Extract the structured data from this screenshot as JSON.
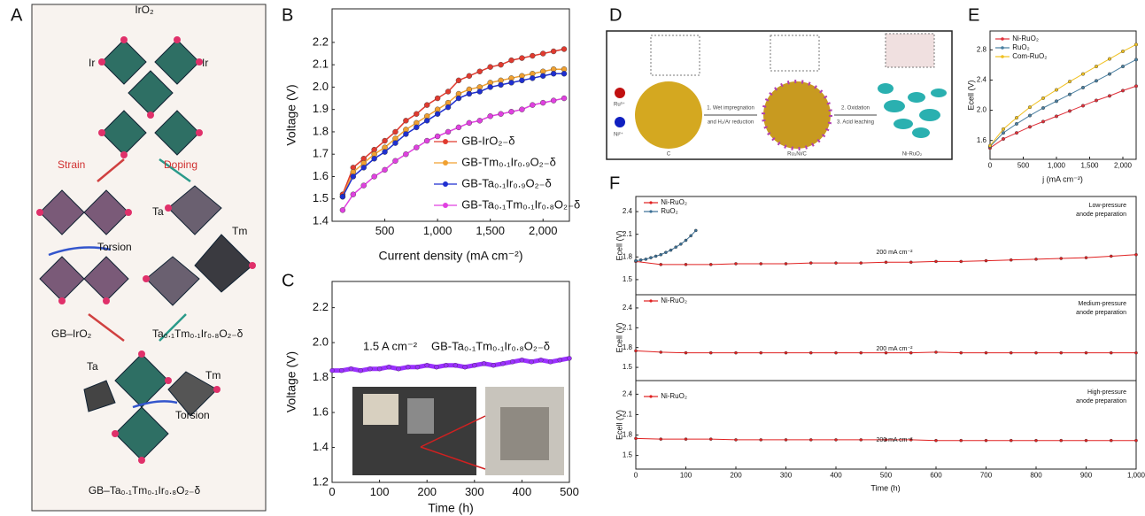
{
  "panel_labels": [
    "A",
    "B",
    "C",
    "D",
    "E",
    "F"
  ],
  "diagram_a": {
    "labels": [
      "IrO₂",
      "Ir",
      "Ir",
      "Strain",
      "Doping",
      "Torsion",
      "Ta",
      "Tm",
      "GB–IrO₂",
      "Ta₀.₁Tm₀.₁Ir₀.₈O₂₋δ",
      "Ta",
      "Tm",
      "Torsion",
      "GB–Ta₀.₁Tm₀.₁Ir₀.₈O₂₋δ"
    ]
  },
  "diagram_d": {
    "labels": [
      "Ru³⁺",
      "Ni²⁺",
      "C",
      "1. Wet impregnation",
      "and H₂/Ar reduction",
      "Ru₃Ni/C",
      "2. Oxidation",
      "3. Acid leaching",
      "Ni-RuO₂"
    ]
  },
  "chart_data": [
    {
      "type": "line",
      "markers": true,
      "xlabel": "Current density (mA cm⁻²)",
      "ylabel": "Voltage (V)",
      "legend": "lower right",
      "x": [
        100,
        200,
        300,
        400,
        500,
        600,
        700,
        800,
        900,
        1000,
        1100,
        1200,
        1300,
        1400,
        1500,
        1600,
        1700,
        1800,
        1900,
        2000,
        2100,
        2200
      ],
      "xlim": [
        0,
        2250
      ],
      "xticks": [
        500,
        {
          "value": 1000,
          "label": "1,000"
        },
        {
          "value": 1500,
          "label": "1,500"
        },
        {
          "value": 2000,
          "label": "2,000"
        }
      ],
      "ylim": [
        1.4,
        2.35
      ],
      "yticks": [
        1.4,
        1.5,
        1.6,
        1.7,
        1.8,
        1.9,
        {
          "value": 2,
          "label": "2.0"
        },
        2.1,
        2.2
      ],
      "series": [
        {
          "name": "GB-IrO₂₋δ",
          "color": "#e03a2f",
          "values": [
            1.52,
            1.64,
            1.68,
            1.72,
            1.76,
            1.8,
            1.85,
            1.88,
            1.92,
            1.95,
            1.98,
            2.03,
            2.05,
            2.07,
            2.09,
            2.1,
            2.12,
            2.13,
            2.14,
            2.15,
            2.16,
            2.17
          ]
        },
        {
          "name": "GB-Tm₀.₁Ir₀.₉O₂₋δ",
          "color": "#f0a030",
          "values": [
            1.51,
            1.62,
            1.66,
            1.7,
            1.73,
            1.77,
            1.81,
            1.84,
            1.87,
            1.9,
            1.93,
            1.97,
            1.99,
            2.0,
            2.02,
            2.03,
            2.04,
            2.05,
            2.06,
            2.07,
            2.08,
            2.08
          ]
        },
        {
          "name": "GB-Ta₀.₁Ir₀.₉O₂₋δ",
          "color": "#1f2fd0",
          "values": [
            1.51,
            1.6,
            1.64,
            1.68,
            1.71,
            1.75,
            1.79,
            1.82,
            1.85,
            1.88,
            1.91,
            1.95,
            1.97,
            1.98,
            2.0,
            2.01,
            2.02,
            2.03,
            2.04,
            2.05,
            2.06,
            2.06
          ]
        },
        {
          "name": "GB-Ta₀.₁Tm₀.₁Ir₀.₈O₂₋δ",
          "color": "#e040e0",
          "values": [
            1.45,
            1.52,
            1.56,
            1.6,
            1.63,
            1.67,
            1.7,
            1.73,
            1.76,
            1.78,
            1.8,
            1.82,
            1.84,
            1.85,
            1.87,
            1.88,
            1.89,
            1.9,
            1.92,
            1.93,
            1.94,
            1.95
          ]
        }
      ]
    },
    {
      "type": "line",
      "markers": true,
      "xlabel": "Time (h)",
      "ylabel": "Voltage (V)",
      "annotations": [
        "1.5 A cm⁻²",
        "GB-Ta₀.₁Tm₀.₁Ir₀.₈O₂₋δ"
      ],
      "x": [
        0,
        20,
        40,
        60,
        80,
        100,
        120,
        140,
        160,
        180,
        200,
        220,
        240,
        260,
        280,
        300,
        320,
        340,
        360,
        380,
        400,
        420,
        440,
        460,
        480,
        500
      ],
      "xlim": [
        0,
        500
      ],
      "xticks": [
        0,
        100,
        200,
        300,
        400,
        500
      ],
      "ylim": [
        1.2,
        2.35
      ],
      "yticks": [
        1.2,
        1.4,
        1.6,
        1.8,
        {
          "value": 2,
          "label": "2.0"
        },
        2.2
      ],
      "series": [
        {
          "color": "#9b30ff",
          "values": [
            1.84,
            1.84,
            1.85,
            1.84,
            1.85,
            1.85,
            1.86,
            1.85,
            1.86,
            1.86,
            1.87,
            1.86,
            1.87,
            1.87,
            1.86,
            1.87,
            1.88,
            1.87,
            1.88,
            1.89,
            1.9,
            1.89,
            1.9,
            1.89,
            1.9,
            1.91
          ]
        }
      ]
    },
    {
      "type": "line",
      "markers": true,
      "xlabel": "j (mA cm⁻²)",
      "ylabel": "Ecell (V)",
      "legend": "upper left",
      "x": [
        0,
        200,
        400,
        600,
        800,
        1000,
        1200,
        1400,
        1600,
        1800,
        2000,
        2200
      ],
      "xlim": [
        0,
        2200
      ],
      "xticks": [
        0,
        500,
        {
          "value": 1000,
          "label": "1,000"
        },
        {
          "value": 1500,
          "label": "1,500"
        },
        {
          "value": 2000,
          "label": "2,000"
        }
      ],
      "ylim": [
        1.35,
        3.05
      ],
      "yticks": [
        1.6,
        {
          "value": 2,
          "label": "2.0"
        },
        2.4,
        2.8
      ],
      "series": [
        {
          "name": "Ni-RuO₂",
          "color": "#e0303a",
          "values": [
            1.5,
            1.62,
            1.7,
            1.78,
            1.85,
            1.92,
            1.99,
            2.06,
            2.13,
            2.19,
            2.26,
            2.32
          ]
        },
        {
          "name": "RuO₂",
          "color": "#4a7fa0",
          "values": [
            1.52,
            1.7,
            1.82,
            1.93,
            2.03,
            2.12,
            2.21,
            2.3,
            2.39,
            2.48,
            2.58,
            2.67
          ]
        },
        {
          "name": "Com-RuO₂",
          "color": "#f0c020",
          "values": [
            1.53,
            1.75,
            1.9,
            2.04,
            2.16,
            2.27,
            2.38,
            2.48,
            2.58,
            2.68,
            2.78,
            2.87
          ]
        }
      ]
    },
    {
      "type": "line",
      "markers": true,
      "ylabel": "Ecell (V)",
      "legend": "upper left",
      "annotations": [
        "Low-pressure",
        "anode preparation",
        "200 mA cm⁻²"
      ],
      "xlim": [
        0,
        1000
      ],
      "ylim": [
        1.3,
        2.6
      ],
      "yticks": [
        1.5,
        1.8,
        2.1,
        2.4
      ],
      "series": [
        {
          "name": "Ni-RuO₂",
          "color": "#e02020",
          "x": [
            0,
            50,
            100,
            150,
            200,
            250,
            300,
            350,
            400,
            450,
            500,
            550,
            600,
            650,
            700,
            750,
            800,
            850,
            900,
            950,
            1000
          ],
          "values": [
            1.74,
            1.7,
            1.7,
            1.7,
            1.71,
            1.71,
            1.71,
            1.72,
            1.72,
            1.72,
            1.73,
            1.73,
            1.74,
            1.74,
            1.75,
            1.76,
            1.77,
            1.78,
            1.79,
            1.81,
            1.83
          ]
        },
        {
          "name": "RuO₂",
          "color": "#3a6f95",
          "x": [
            0,
            10,
            20,
            30,
            40,
            50,
            60,
            70,
            80,
            90,
            100,
            110,
            120
          ],
          "values": [
            1.75,
            1.76,
            1.77,
            1.79,
            1.81,
            1.83,
            1.86,
            1.89,
            1.93,
            1.97,
            2.02,
            2.08,
            2.15
          ]
        }
      ]
    },
    {
      "type": "line",
      "markers": true,
      "ylabel": "Ecell (V)",
      "legend": "upper left",
      "annotations": [
        "Medium-pressure",
        "anode preparation",
        "200 mA cm⁻²"
      ],
      "xlim": [
        0,
        1000
      ],
      "ylim": [
        1.3,
        2.6
      ],
      "yticks": [
        1.5,
        1.8,
        2.1,
        2.4
      ],
      "series": [
        {
          "name": "Ni-RuO₂",
          "color": "#e02020",
          "x": [
            0,
            50,
            100,
            150,
            200,
            250,
            300,
            350,
            400,
            450,
            500,
            550,
            600,
            650,
            700,
            750,
            800,
            850,
            900,
            950,
            1000
          ],
          "values": [
            1.75,
            1.73,
            1.72,
            1.72,
            1.72,
            1.72,
            1.72,
            1.72,
            1.72,
            1.72,
            1.72,
            1.72,
            1.73,
            1.72,
            1.72,
            1.72,
            1.72,
            1.72,
            1.72,
            1.72,
            1.72
          ]
        }
      ]
    },
    {
      "type": "line",
      "markers": true,
      "xlabel": "Time (h)",
      "ylabel": "Ecell (V)",
      "legend": "upper left",
      "annotations": [
        "High-pressure",
        "anode preparation",
        "200 mA cm⁻²"
      ],
      "xlim": [
        0,
        1000
      ],
      "xticks": [
        0,
        100,
        200,
        300,
        400,
        500,
        600,
        700,
        800,
        900,
        {
          "value": 1000,
          "label": "1,000"
        }
      ],
      "ylim": [
        1.3,
        2.6
      ],
      "yticks": [
        1.5,
        1.8,
        2.1,
        2.4
      ],
      "series": [
        {
          "name": "Ni-RuO₂",
          "color": "#e02020",
          "x": [
            0,
            50,
            100,
            150,
            200,
            250,
            300,
            350,
            400,
            450,
            500,
            550,
            600,
            650,
            700,
            750,
            800,
            850,
            900,
            950,
            1000
          ],
          "values": [
            1.75,
            1.74,
            1.74,
            1.74,
            1.73,
            1.73,
            1.73,
            1.73,
            1.73,
            1.73,
            1.73,
            1.73,
            1.72,
            1.72,
            1.72,
            1.72,
            1.72,
            1.72,
            1.72,
            1.72,
            1.72
          ]
        }
      ]
    }
  ]
}
